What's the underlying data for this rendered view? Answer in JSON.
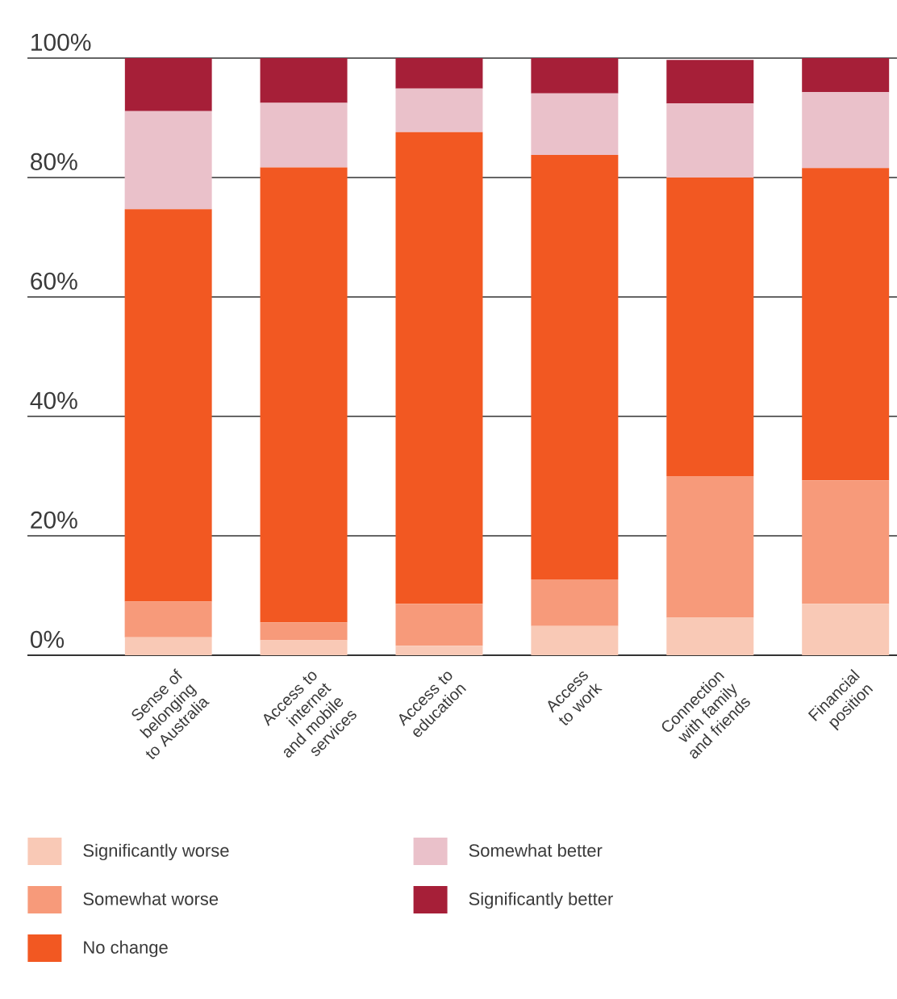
{
  "chart_data": {
    "type": "bar",
    "stacked": true,
    "categories": [
      "Sense of belonging to Australia",
      "Access to internet and mobile services",
      "Access to education",
      "Access to work",
      "Connection with family and friends",
      "Financial position"
    ],
    "series": [
      {
        "name": "Significantly worse",
        "color": "#f9c9b6",
        "values": [
          3,
          2.5,
          1.6,
          4.9,
          6.3,
          8.6
        ]
      },
      {
        "name": "Somewhat worse",
        "color": "#f79a7a",
        "values": [
          6,
          3,
          7,
          7.8,
          23.7,
          20.7
        ]
      },
      {
        "name": "No change",
        "color": "#f25822",
        "values": [
          65.7,
          76.2,
          79,
          71.1,
          50,
          52.3
        ]
      },
      {
        "name": "Somewhat better",
        "color": "#eac1ca",
        "values": [
          16.4,
          10.8,
          7.3,
          10.3,
          12.4,
          12.7
        ]
      },
      {
        "name": "Significantly better",
        "color": "#a61f38",
        "values": [
          8.9,
          7.5,
          5.1,
          5.9,
          7.3,
          5.7
        ]
      }
    ],
    "ylim": [
      0,
      100
    ],
    "yticks": [
      {
        "value": 0,
        "label": "0%"
      },
      {
        "value": 20,
        "label": "20%"
      },
      {
        "value": 40,
        "label": "40%"
      },
      {
        "value": 60,
        "label": "60%"
      },
      {
        "value": 80,
        "label": "80%"
      },
      {
        "value": 100,
        "label": "100%"
      }
    ],
    "grid": "y",
    "legend": "bottom"
  }
}
